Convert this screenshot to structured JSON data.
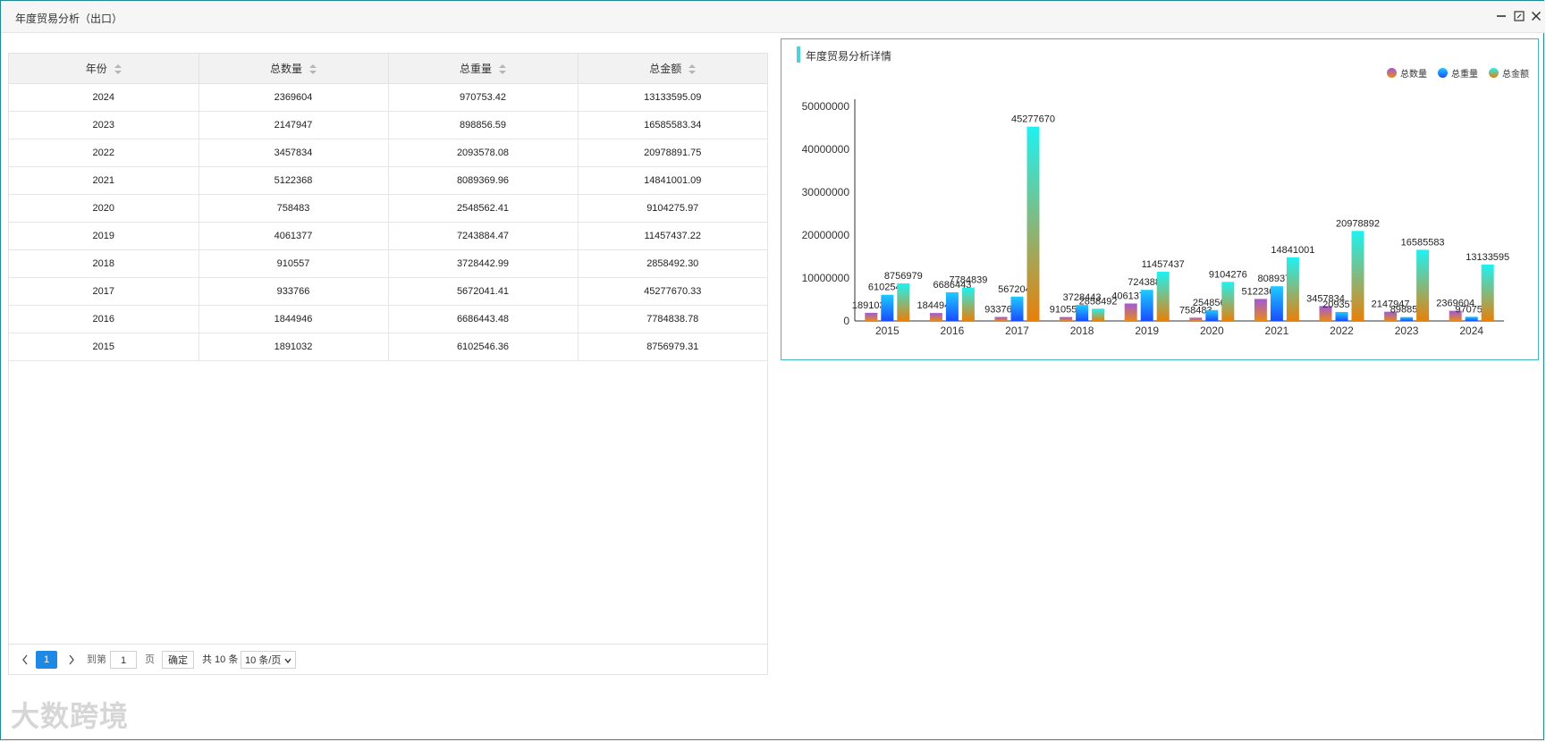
{
  "window": {
    "title": "年度贸易分析（出口）"
  },
  "table": {
    "columns": [
      "年份",
      "总数量",
      "总重量",
      "总金额"
    ],
    "rows": [
      [
        "2024",
        "2369604",
        "970753.42",
        "13133595.09"
      ],
      [
        "2023",
        "2147947",
        "898856.59",
        "16585583.34"
      ],
      [
        "2022",
        "3457834",
        "2093578.08",
        "20978891.75"
      ],
      [
        "2021",
        "5122368",
        "8089369.96",
        "14841001.09"
      ],
      [
        "2020",
        "758483",
        "2548562.41",
        "9104275.97"
      ],
      [
        "2019",
        "4061377",
        "7243884.47",
        "11457437.22"
      ],
      [
        "2018",
        "910557",
        "3728442.99",
        "2858492.30"
      ],
      [
        "2017",
        "933766",
        "5672041.41",
        "45277670.33"
      ],
      [
        "2016",
        "1844946",
        "6686443.48",
        "7784838.78"
      ],
      [
        "2015",
        "1891032",
        "6102546.36",
        "8756979.31"
      ]
    ]
  },
  "pagination": {
    "current_page": "1",
    "goto_label": "到第",
    "goto_value": "1",
    "page_label": "页",
    "confirm_label": "确定",
    "total_label": "共 10 条",
    "page_size": "10 条/页"
  },
  "chart_panel": {
    "title": "年度贸易分析详情"
  },
  "chart_data": {
    "type": "bar",
    "categories": [
      "2015",
      "2016",
      "2017",
      "2018",
      "2019",
      "2020",
      "2021",
      "2022",
      "2023",
      "2024"
    ],
    "series": [
      {
        "name": "总数量",
        "values": [
          1891032,
          1844946,
          933766,
          910557,
          4061377,
          758483,
          5122368,
          3457834,
          2147947,
          2369604
        ],
        "color_top": "#a05ad6",
        "color_bottom": "#e88a1a"
      },
      {
        "name": "总重量",
        "values": [
          6102546,
          6686443,
          5672041,
          3728443,
          7243884,
          2548562,
          8089370,
          2093578,
          898857,
          970753
        ],
        "color_top": "#1ecbff",
        "color_bottom": "#1a4cff"
      },
      {
        "name": "总金额",
        "values": [
          8756979,
          7784839,
          45277670,
          2858492,
          11457437,
          9104276,
          14841001,
          20978892,
          16585583,
          13133595
        ],
        "color_top": "#1ef2f2",
        "color_bottom": "#e8800a"
      }
    ],
    "y_ticks": [
      "0",
      "10000000",
      "20000000",
      "30000000",
      "40000000",
      "50000000"
    ],
    "ylim": [
      0,
      50000000
    ],
    "legend_position": "top-right"
  },
  "watermark": {
    "text": "大数跨境"
  }
}
